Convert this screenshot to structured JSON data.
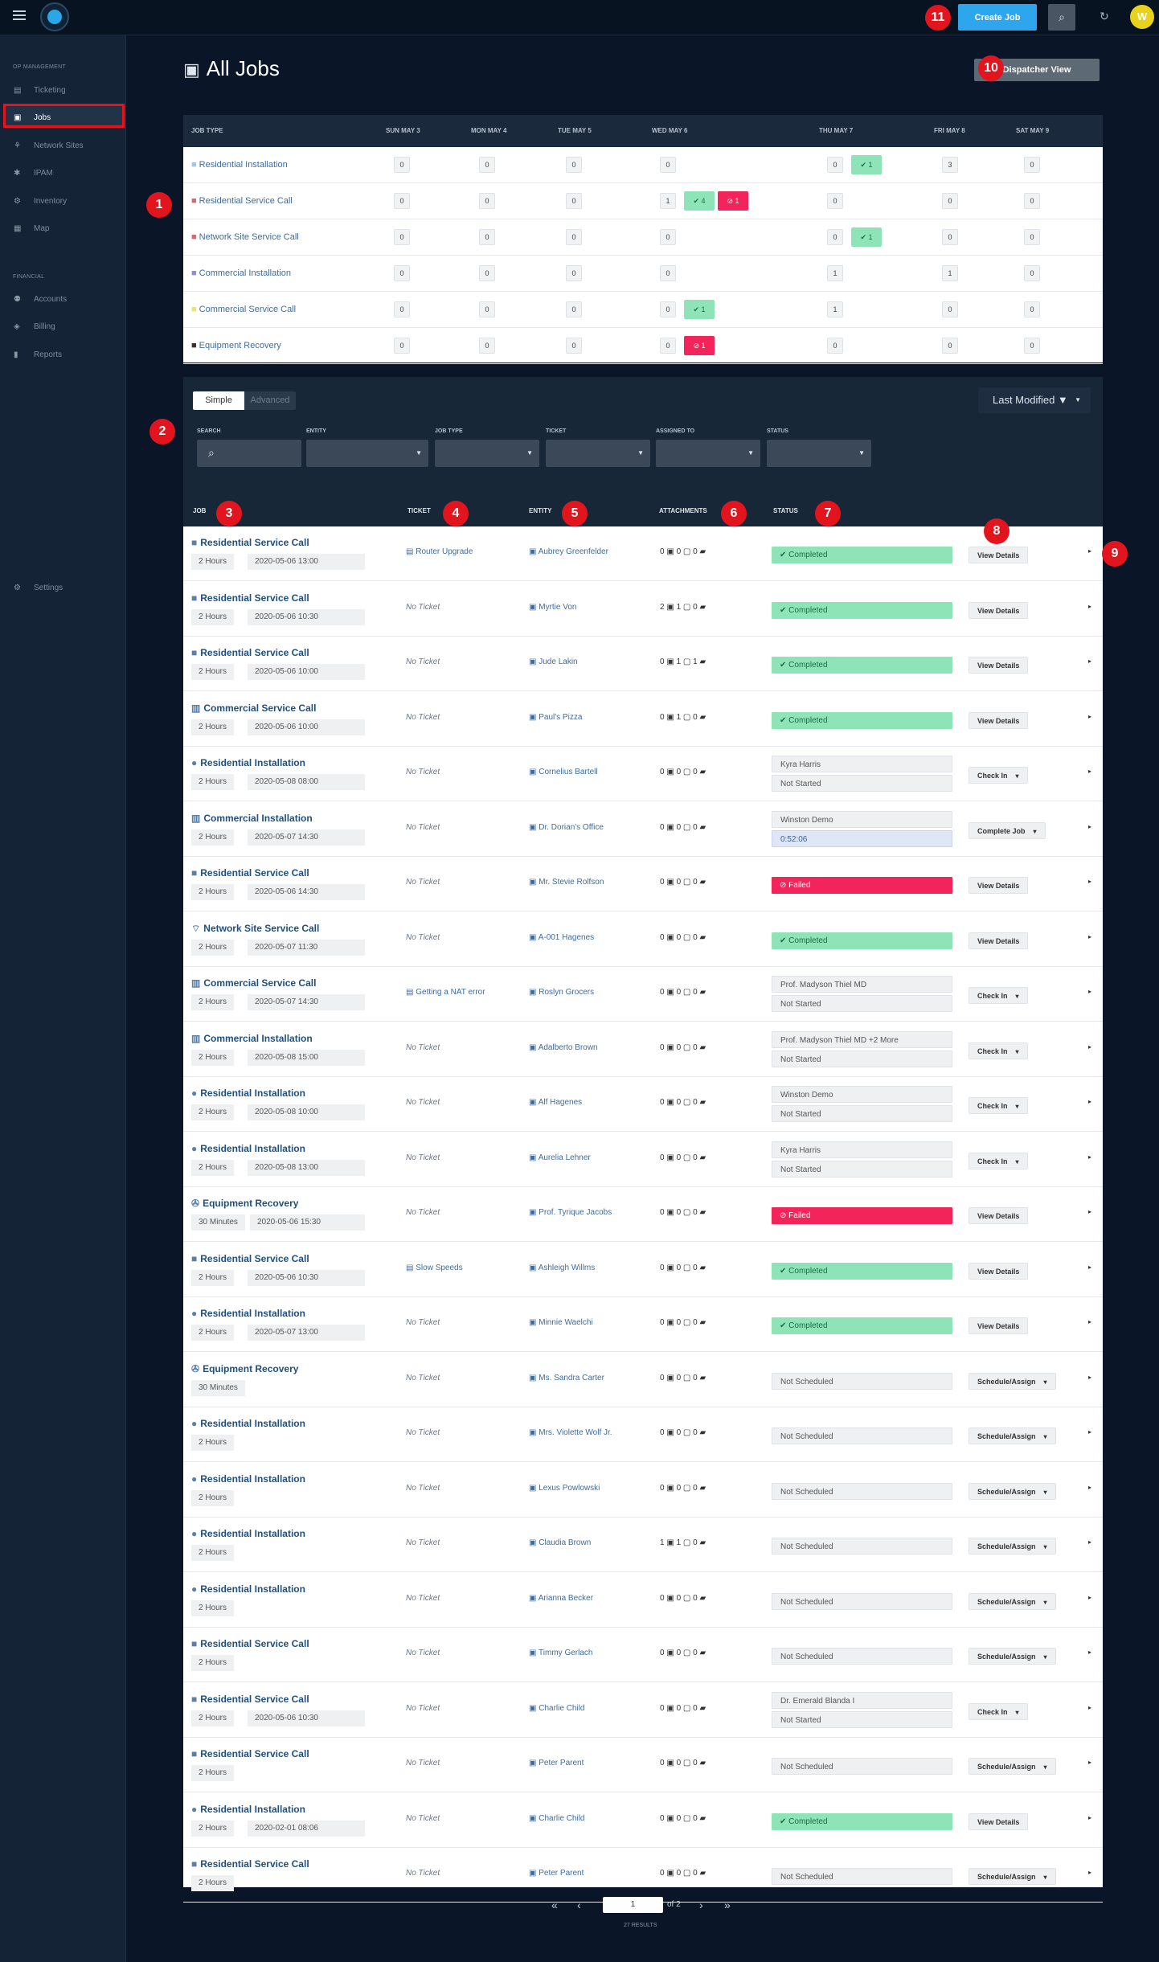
{
  "topbar": {
    "create_label": "Create Job",
    "avatar_initial": "W",
    "search_icon": "search-icon",
    "refresh_icon": "refresh-icon"
  },
  "markers": [
    "1",
    "2",
    "3",
    "4",
    "5",
    "6",
    "7",
    "8",
    "9",
    "10",
    "11"
  ],
  "sidebar": {
    "section_ops": "OP MANAGEMENT",
    "section_fin": "FINANCIAL",
    "items": [
      {
        "label": "Ticketing",
        "icon": "ticket-icon"
      },
      {
        "label": "Jobs",
        "icon": "briefcase-icon"
      },
      {
        "label": "Network Sites",
        "icon": "network-icon"
      },
      {
        "label": "IPAM",
        "icon": "ipam-icon"
      },
      {
        "label": "Inventory",
        "icon": "inventory-icon"
      },
      {
        "label": "Map",
        "icon": "map-icon"
      },
      {
        "label": "Accounts",
        "icon": "accounts-icon"
      },
      {
        "label": "Billing",
        "icon": "billing-icon"
      },
      {
        "label": "Reports",
        "icon": "reports-icon"
      },
      {
        "label": "Settings",
        "icon": "gear-icon"
      }
    ]
  },
  "page": {
    "title": "All Jobs",
    "dispatcher_label": "Dispatcher View"
  },
  "week": {
    "job_type_header": "JOB TYPE",
    "days": [
      "SUN MAY 3",
      "MON MAY 4",
      "TUE MAY 5",
      "WED MAY 6",
      "THU MAY 7",
      "FRI MAY 8",
      "SAT MAY 9"
    ],
    "rows": [
      {
        "type": "Residential Installation",
        "color": "#9cc7ef",
        "counts": [
          "0",
          "0",
          "0",
          "0",
          "0",
          "3",
          "0"
        ],
        "green": {
          "col": "4",
          "text": "✔ 1"
        }
      },
      {
        "type": "Residential Service Call",
        "color": "#e0656a",
        "counts": [
          "0",
          "0",
          "0",
          "1",
          "0",
          "0",
          "0"
        ],
        "green": {
          "col": "3",
          "text": "✔ 4"
        },
        "red": {
          "col": "3",
          "text": "⊘ 1"
        }
      },
      {
        "type": "Network Site Service Call",
        "color": "#e0656a",
        "counts": [
          "0",
          "0",
          "0",
          "0",
          "0",
          "0",
          "0"
        ],
        "green": {
          "col": "4",
          "text": "✔ 1"
        }
      },
      {
        "type": "Commercial Installation",
        "color": "#8a8fd6",
        "counts": [
          "0",
          "0",
          "0",
          "0",
          "1",
          "1",
          "0"
        ]
      },
      {
        "type": "Commercial Service Call",
        "color": "#efe36b",
        "counts": [
          "0",
          "0",
          "0",
          "0",
          "1",
          "0",
          "0"
        ],
        "green": {
          "col": "3",
          "text": "✔ 1"
        }
      },
      {
        "type": "Equipment Recovery",
        "color": "#333333",
        "counts": [
          "0",
          "0",
          "0",
          "0",
          "0",
          "0",
          "0"
        ],
        "red": {
          "col": "3",
          "text": "⊘ 1"
        }
      }
    ]
  },
  "filters": {
    "simple_label": "Simple",
    "advanced_label": "Advanced",
    "sort_label": "Last Modified ▼",
    "labels": [
      "SEARCH",
      "ENTITY",
      "JOB TYPE",
      "TICKET",
      "ASSIGNED TO",
      "STATUS"
    ]
  },
  "jobs_table": {
    "headers": [
      "JOB",
      "TICKET",
      "ENTITY",
      "ATTACHMENTS",
      "STATUS"
    ],
    "rows": [
      {
        "name": "Residential Service Call",
        "icon": "■",
        "icolor": "#5b7fa6",
        "duration": "2 Hours",
        "date": "2020-05-06 13:00",
        "ticket": "Router Upgrade",
        "tlink": true,
        "entity": "Aubrey Greenfelder",
        "att": "0 ▣   0 ▢   0 ▰",
        "status": "✔ Completed",
        "skind": "g",
        "action": "View Details"
      },
      {
        "name": "Residential Service Call",
        "icon": "■",
        "icolor": "#5b7fa6",
        "duration": "2 Hours",
        "date": "2020-05-06 10:30",
        "ticket": "No Ticket",
        "entity": "Myrtie Von",
        "att": "2 ▣   1 ▢   0 ▰",
        "status": "✔ Completed",
        "skind": "g",
        "action": "View Details"
      },
      {
        "name": "Residential Service Call",
        "icon": "■",
        "icolor": "#5b7fa6",
        "duration": "2 Hours",
        "date": "2020-05-06 10:00",
        "ticket": "No Ticket",
        "entity": "Jude Lakin",
        "att": "0 ▣   1 ▢   1 ▰",
        "status": "✔ Completed",
        "skind": "g",
        "action": "View Details"
      },
      {
        "name": "Commercial Service Call",
        "icon": "▥",
        "icolor": "#5b7fa6",
        "duration": "2 Hours",
        "date": "2020-05-06 10:00",
        "ticket": "No Ticket",
        "entity": "Paul's Pizza",
        "att": "0 ▣   1 ▢   0 ▰",
        "status": "✔ Completed",
        "skind": "g",
        "action": "View Details"
      },
      {
        "name": "Residential Installation",
        "icon": "●",
        "icolor": "#5b7fa6",
        "duration": "2 Hours",
        "date": "2020-05-08 08:00",
        "ticket": "No Ticket",
        "entity": "Cornelius Bartell",
        "att": "0 ▣   0 ▢   0 ▰",
        "status": "Kyra Harris",
        "status2": "Not Started",
        "skind": "n",
        "action": "Check In",
        "dd": true
      },
      {
        "name": "Commercial Installation",
        "icon": "▥",
        "icolor": "#5b7fa6",
        "duration": "2 Hours",
        "date": "2020-05-07 14:30",
        "ticket": "No Ticket",
        "entity": "Dr. Dorian's Office",
        "att": "0 ▣   0 ▢   0 ▰",
        "status": "Winston Demo",
        "status2": "0:52:06",
        "skind": "n",
        "s2kind": "b",
        "action": "Complete Job",
        "dd": true
      },
      {
        "name": "Residential Service Call",
        "icon": "■",
        "icolor": "#5b7fa6",
        "duration": "2 Hours",
        "date": "2020-05-06 14:30",
        "ticket": "No Ticket",
        "entity": "Mr. Stevie Rolfson",
        "att": "0 ▣   0 ▢   0 ▰",
        "status": "⊘ Failed",
        "skind": "r",
        "action": "View Details"
      },
      {
        "name": "Network Site Service Call",
        "icon": "⌔",
        "icolor": "#5b7fa6",
        "duration": "2 Hours",
        "date": "2020-05-07 11:30",
        "ticket": "No Ticket",
        "entity": "A-001 Hagenes",
        "att": "0 ▣   0 ▢   0 ▰",
        "status": "✔ Completed",
        "skind": "g",
        "action": "View Details"
      },
      {
        "name": "Commercial Service Call",
        "icon": "▥",
        "icolor": "#5b7fa6",
        "duration": "2 Hours",
        "date": "2020-05-07 14:30",
        "ticket": "Getting a NAT error",
        "tlink": true,
        "entity": "Roslyn Grocers",
        "att": "0 ▣   0 ▢   0 ▰",
        "status": "Prof. Madyson Thiel MD",
        "status2": "Not Started",
        "skind": "n",
        "action": "Check In",
        "dd": true
      },
      {
        "name": "Commercial Installation",
        "icon": "▥",
        "icolor": "#5b7fa6",
        "duration": "2 Hours",
        "date": "2020-05-08 15:00",
        "ticket": "No Ticket",
        "entity": "Adalberto Brown",
        "att": "0 ▣   0 ▢   0 ▰",
        "status": "Prof. Madyson Thiel MD +2 More",
        "status2": "Not Started",
        "skind": "n",
        "action": "Check In",
        "dd": true
      },
      {
        "name": "Residential Installation",
        "icon": "●",
        "icolor": "#5b7fa6",
        "duration": "2 Hours",
        "date": "2020-05-08 10:00",
        "ticket": "No Ticket",
        "entity": "Alf Hagenes",
        "att": "0 ▣   0 ▢   0 ▰",
        "status": "Winston Demo",
        "status2": "Not Started",
        "skind": "n",
        "action": "Check In",
        "dd": true
      },
      {
        "name": "Residential Installation",
        "icon": "●",
        "icolor": "#5b7fa6",
        "duration": "2 Hours",
        "date": "2020-05-08 13:00",
        "ticket": "No Ticket",
        "entity": "Aurelia Lehner",
        "att": "0 ▣   0 ▢   0 ▰",
        "status": "Kyra Harris",
        "status2": "Not Started",
        "skind": "n",
        "action": "Check In",
        "dd": true
      },
      {
        "name": "Equipment Recovery",
        "icon": "✇",
        "icolor": "#5b7fa6",
        "duration": "30 Minutes",
        "date": "2020-05-06 15:30",
        "ticket": "No Ticket",
        "entity": "Prof. Tyrique Jacobs",
        "att": "0 ▣   0 ▢   0 ▰",
        "status": "⊘ Failed",
        "skind": "r",
        "action": "View Details"
      },
      {
        "name": "Residential Service Call",
        "icon": "■",
        "icolor": "#5b7fa6",
        "duration": "2 Hours",
        "date": "2020-05-06 10:30",
        "ticket": "Slow Speeds",
        "tlink": true,
        "entity": "Ashleigh Willms",
        "att": "0 ▣   0 ▢   0 ▰",
        "status": "✔ Completed",
        "skind": "g",
        "action": "View Details"
      },
      {
        "name": "Residential Installation",
        "icon": "●",
        "icolor": "#5b7fa6",
        "duration": "2 Hours",
        "date": "2020-05-07 13:00",
        "ticket": "No Ticket",
        "entity": "Minnie Waelchi",
        "att": "0 ▣   0 ▢   0 ▰",
        "status": "✔ Completed",
        "skind": "g",
        "action": "View Details"
      },
      {
        "name": "Equipment Recovery",
        "icon": "✇",
        "icolor": "#5b7fa6",
        "duration": "30 Minutes",
        "ticket": "No Ticket",
        "entity": "Ms. Sandra Carter",
        "att": "0 ▣   0 ▢   0 ▰",
        "status": "Not Scheduled",
        "skind": "n",
        "action": "Schedule/Assign",
        "dd": true
      },
      {
        "name": "Residential Installation",
        "icon": "●",
        "icolor": "#5b7fa6",
        "duration": "2 Hours",
        "ticket": "No Ticket",
        "entity": "Mrs. Violette Wolf Jr.",
        "att": "0 ▣   0 ▢   0 ▰",
        "status": "Not Scheduled",
        "skind": "n",
        "action": "Schedule/Assign",
        "dd": true
      },
      {
        "name": "Residential Installation",
        "icon": "●",
        "icolor": "#5b7fa6",
        "duration": "2 Hours",
        "ticket": "No Ticket",
        "entity": "Lexus Powlowski",
        "att": "0 ▣   0 ▢   0 ▰",
        "status": "Not Scheduled",
        "skind": "n",
        "action": "Schedule/Assign",
        "dd": true
      },
      {
        "name": "Residential Installation",
        "icon": "●",
        "icolor": "#5b7fa6",
        "duration": "2 Hours",
        "ticket": "No Ticket",
        "entity": "Claudia Brown",
        "att": "1 ▣   1 ▢   0 ▰",
        "status": "Not Scheduled",
        "skind": "n",
        "action": "Schedule/Assign",
        "dd": true
      },
      {
        "name": "Residential Installation",
        "icon": "●",
        "icolor": "#5b7fa6",
        "duration": "2 Hours",
        "ticket": "No Ticket",
        "entity": "Arianna Becker",
        "att": "0 ▣   0 ▢   0 ▰",
        "status": "Not Scheduled",
        "skind": "n",
        "action": "Schedule/Assign",
        "dd": true
      },
      {
        "name": "Residential Service Call",
        "icon": "■",
        "icolor": "#5b7fa6",
        "duration": "2 Hours",
        "ticket": "No Ticket",
        "entity": "Timmy Gerlach",
        "att": "0 ▣   0 ▢   0 ▰",
        "status": "Not Scheduled",
        "skind": "n",
        "action": "Schedule/Assign",
        "dd": true
      },
      {
        "name": "Residential Service Call",
        "icon": "■",
        "icolor": "#5b7fa6",
        "duration": "2 Hours",
        "date": "2020-05-06 10:30",
        "ticket": "No Ticket",
        "entity": "Charlie Child",
        "att": "0 ▣   0 ▢   0 ▰",
        "status": "Dr. Emerald Blanda I",
        "status2": "Not Started",
        "skind": "n",
        "action": "Check In",
        "dd": true
      },
      {
        "name": "Residential Service Call",
        "icon": "■",
        "icolor": "#5b7fa6",
        "duration": "2 Hours",
        "ticket": "No Ticket",
        "entity": "Peter Parent",
        "att": "0 ▣   0 ▢   0 ▰",
        "status": "Not Scheduled",
        "skind": "n",
        "action": "Schedule/Assign",
        "dd": true
      },
      {
        "name": "Residential Installation",
        "icon": "●",
        "icolor": "#5b7fa6",
        "duration": "2 Hours",
        "date": "2020-02-01 08:06",
        "ticket": "No Ticket",
        "entity": "Charlie Child",
        "att": "0 ▣   0 ▢   0 ▰",
        "status": "✔ Completed",
        "skind": "g",
        "action": "View Details"
      },
      {
        "name": "Residential Service Call",
        "icon": "■",
        "icolor": "#5b7fa6",
        "duration": "2 Hours",
        "ticket": "No Ticket",
        "entity": "Peter Parent",
        "att": "0 ▣   0 ▢   0 ▰",
        "status": "Not Scheduled",
        "skind": "n",
        "action": "Schedule/Assign",
        "dd": true
      }
    ]
  },
  "pagination": {
    "page": "1",
    "of": "of 2",
    "results": "27 RESULTS"
  }
}
